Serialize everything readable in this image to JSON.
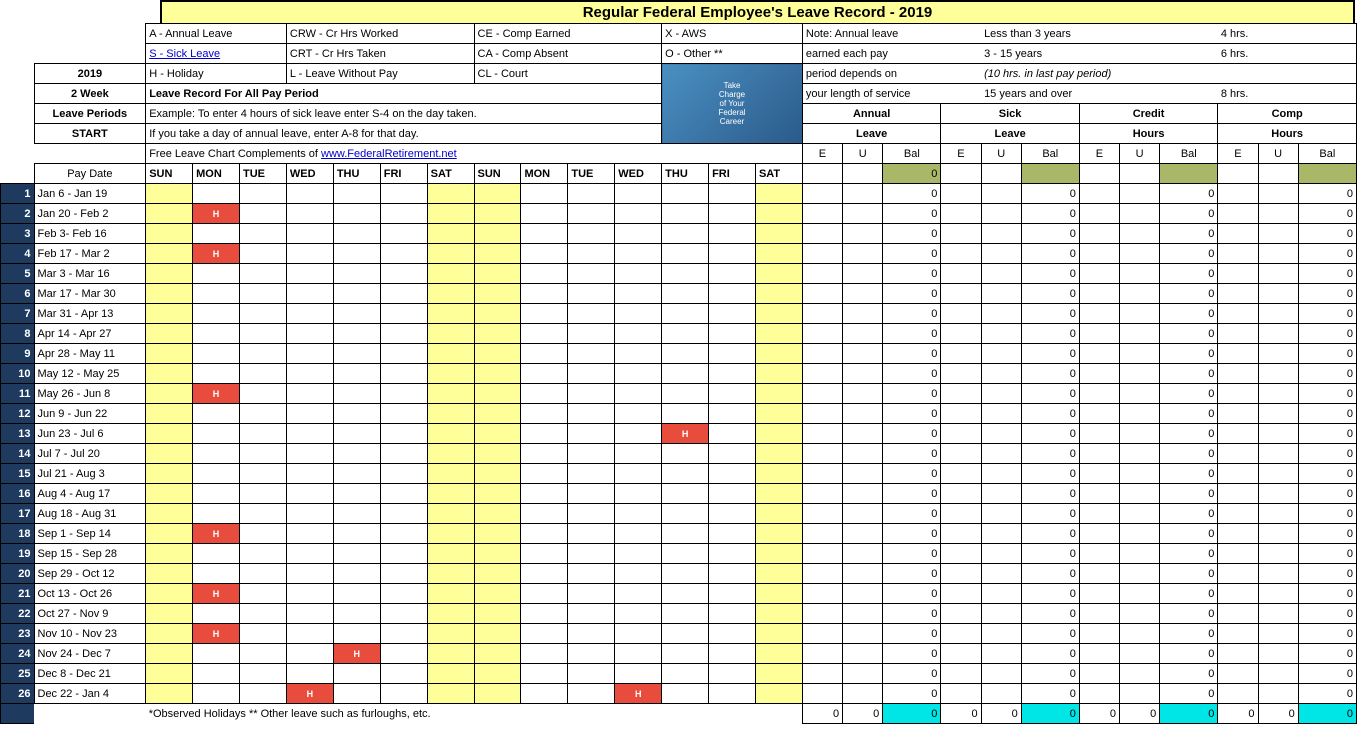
{
  "title": "Regular Federal Employee's Leave Record - 2019",
  "legend": {
    "a": "A - Annual Leave",
    "crw": "CRW - Cr Hrs Worked",
    "ce": "CE - Comp Earned",
    "x": "X - AWS",
    "s": "S  - Sick Leave",
    "crt": "CRT - Cr Hrs Taken",
    "ca": "CA - Comp Absent",
    "o": "O - Other **",
    "h": "H - Holiday",
    "l": "L    - Leave Without Pay",
    "cl": "CL  - Court"
  },
  "note1": "Note:  Annual leave",
  "note2": "earned each pay",
  "note3": "period depends on",
  "note4": "your length of service",
  "rate1": "Less than 3 years",
  "rate1h": "4 hrs.",
  "rate2": "3 - 15 years",
  "rate2h": "6 hrs.",
  "rate2n": "(10 hrs. in last pay period)",
  "rate3": "15 years and over",
  "rate3h": "8 hrs.",
  "left": {
    "year": "2019",
    "weeks": "2 Week",
    "lp": "Leave Periods",
    "start": "START",
    "paydate": "Pay Date"
  },
  "mid": {
    "lr": "Leave Record For All Pay Period",
    "ex1": "Example: To enter 4 hours of sick leave enter S-4 on the day taken.",
    "ex2": "If you take a day of annual leave, enter A-8 for that day.",
    "ex3": "Free Leave Chart Complements of ",
    "link": "www.FederalRetirement.net"
  },
  "days": [
    "SUN",
    "MON",
    "TUE",
    "WED",
    "THU",
    "FRI",
    "SAT",
    "SUN",
    "MON",
    "TUE",
    "WED",
    "THU",
    "FRI",
    "SAT"
  ],
  "sections": {
    "annual": "Annual",
    "leave": "Leave",
    "sick": "Sick",
    "credit": "Credit",
    "hours": "Hours",
    "comp": "Comp",
    "e": "E",
    "u": "U",
    "bal": "Bal"
  },
  "rows": [
    {
      "n": 1,
      "d": "Jan 6 - Jan 19",
      "h": []
    },
    {
      "n": 2,
      "d": "Jan 20 - Feb 2",
      "h": [
        1
      ]
    },
    {
      "n": 3,
      "d": "Feb 3- Feb 16",
      "h": []
    },
    {
      "n": 4,
      "d": "Feb 17 - Mar 2",
      "h": [
        1
      ]
    },
    {
      "n": 5,
      "d": "Mar 3 - Mar 16",
      "h": []
    },
    {
      "n": 6,
      "d": "Mar 17 - Mar 30",
      "h": []
    },
    {
      "n": 7,
      "d": "Mar 31 - Apr  13",
      "h": []
    },
    {
      "n": 8,
      "d": "Apr  14 - Apr 27",
      "h": []
    },
    {
      "n": 9,
      "d": "Apr 28 - May 11",
      "h": []
    },
    {
      "n": 10,
      "d": "May 12 - May 25",
      "h": []
    },
    {
      "n": 11,
      "d": "May 26 - Jun 8",
      "h": [
        1
      ]
    },
    {
      "n": 12,
      "d": "Jun 9 - Jun 22",
      "h": []
    },
    {
      "n": 13,
      "d": "Jun 23 - Jul 6",
      "h": [
        11
      ]
    },
    {
      "n": 14,
      "d": "Jul 7 - Jul 20",
      "h": []
    },
    {
      "n": 15,
      "d": "Jul 21 - Aug 3",
      "h": []
    },
    {
      "n": 16,
      "d": "Aug 4 - Aug 17",
      "h": []
    },
    {
      "n": 17,
      "d": "Aug 18 - Aug 31",
      "h": []
    },
    {
      "n": 18,
      "d": "Sep 1 - Sep  14",
      "h": [
        1
      ]
    },
    {
      "n": 19,
      "d": "Sep  15 - Sep 28",
      "h": []
    },
    {
      "n": 20,
      "d": "Sep 29 - Oct  12",
      "h": []
    },
    {
      "n": 21,
      "d": "Oct  13 - Oct 26",
      "h": [
        1
      ]
    },
    {
      "n": 22,
      "d": "Oct 27 - Nov  9",
      "h": []
    },
    {
      "n": 23,
      "d": "Nov  10 - Nov 23",
      "h": [
        1
      ]
    },
    {
      "n": 24,
      "d": "Nov 24 - Dec  7",
      "h": [
        4
      ]
    },
    {
      "n": 25,
      "d": "Dec  8 - Dec 21",
      "h": []
    },
    {
      "n": 26,
      "d": "Dec 22 - Jan 4",
      "h": [
        3,
        10
      ]
    }
  ],
  "zero": "0",
  "footer": "*Observed Holidays  ** Other leave such as furloughs, etc.",
  "firstrow_bal": "0",
  "colors": {
    "bg_title": "#ffff99",
    "dark": "#1f3a5f",
    "hol": "#e74c3c",
    "olive": "#a9b868",
    "cyan": "#00e5e5"
  }
}
